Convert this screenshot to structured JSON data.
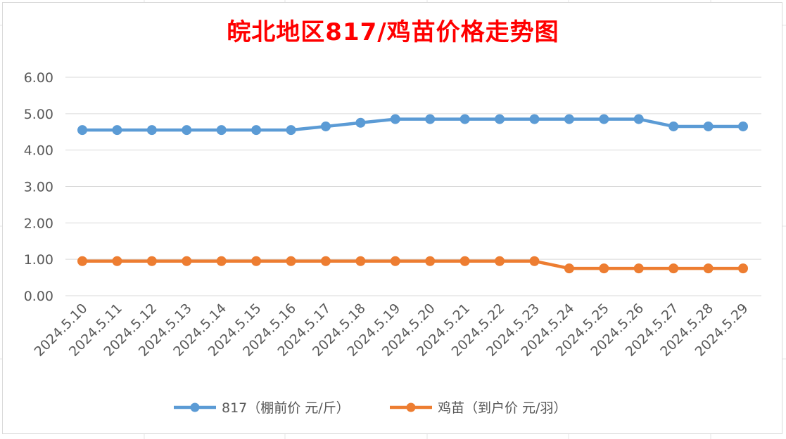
{
  "colors": {
    "series_1": "#5b9bd5",
    "series_2": "#ed7d31",
    "title": "#ff0000",
    "grid": "#d9d9d9",
    "axis_text": "#595959"
  },
  "chart_data": {
    "type": "line",
    "title": "皖北地区817/鸡苗价格走势图",
    "xlabel": "",
    "ylabel": "",
    "ylim": [
      0,
      6
    ],
    "ytick_step": 1,
    "y_tick_labels": [
      "0.00",
      "1.00",
      "2.00",
      "3.00",
      "4.00",
      "5.00",
      "6.00"
    ],
    "grid": true,
    "legend_position": "bottom",
    "categories": [
      "2024.5.10",
      "2024.5.11",
      "2024.5.12",
      "2024.5.13",
      "2024.5.14",
      "2024.5.15",
      "2024.5.16",
      "2024.5.17",
      "2024.5.18",
      "2024.5.19",
      "2024.5.20",
      "2024.5.21",
      "2024.5.22",
      "2024.5.23",
      "2024.5.24",
      "2024.5.25",
      "2024.5.26",
      "2024.5.27",
      "2024.5.28",
      "2024.5.29"
    ],
    "series": [
      {
        "name": "817（棚前价 元/斤）",
        "color": "#5b9bd5",
        "values": [
          4.55,
          4.55,
          4.55,
          4.55,
          4.55,
          4.55,
          4.55,
          4.65,
          4.75,
          4.85,
          4.85,
          4.85,
          4.85,
          4.85,
          4.85,
          4.85,
          4.85,
          4.65,
          4.65,
          4.65
        ]
      },
      {
        "name": "鸡苗（到户价 元/羽）",
        "color": "#ed7d31",
        "values": [
          0.95,
          0.95,
          0.95,
          0.95,
          0.95,
          0.95,
          0.95,
          0.95,
          0.95,
          0.95,
          0.95,
          0.95,
          0.95,
          0.95,
          0.75,
          0.75,
          0.75,
          0.75,
          0.75,
          0.75
        ]
      }
    ]
  }
}
